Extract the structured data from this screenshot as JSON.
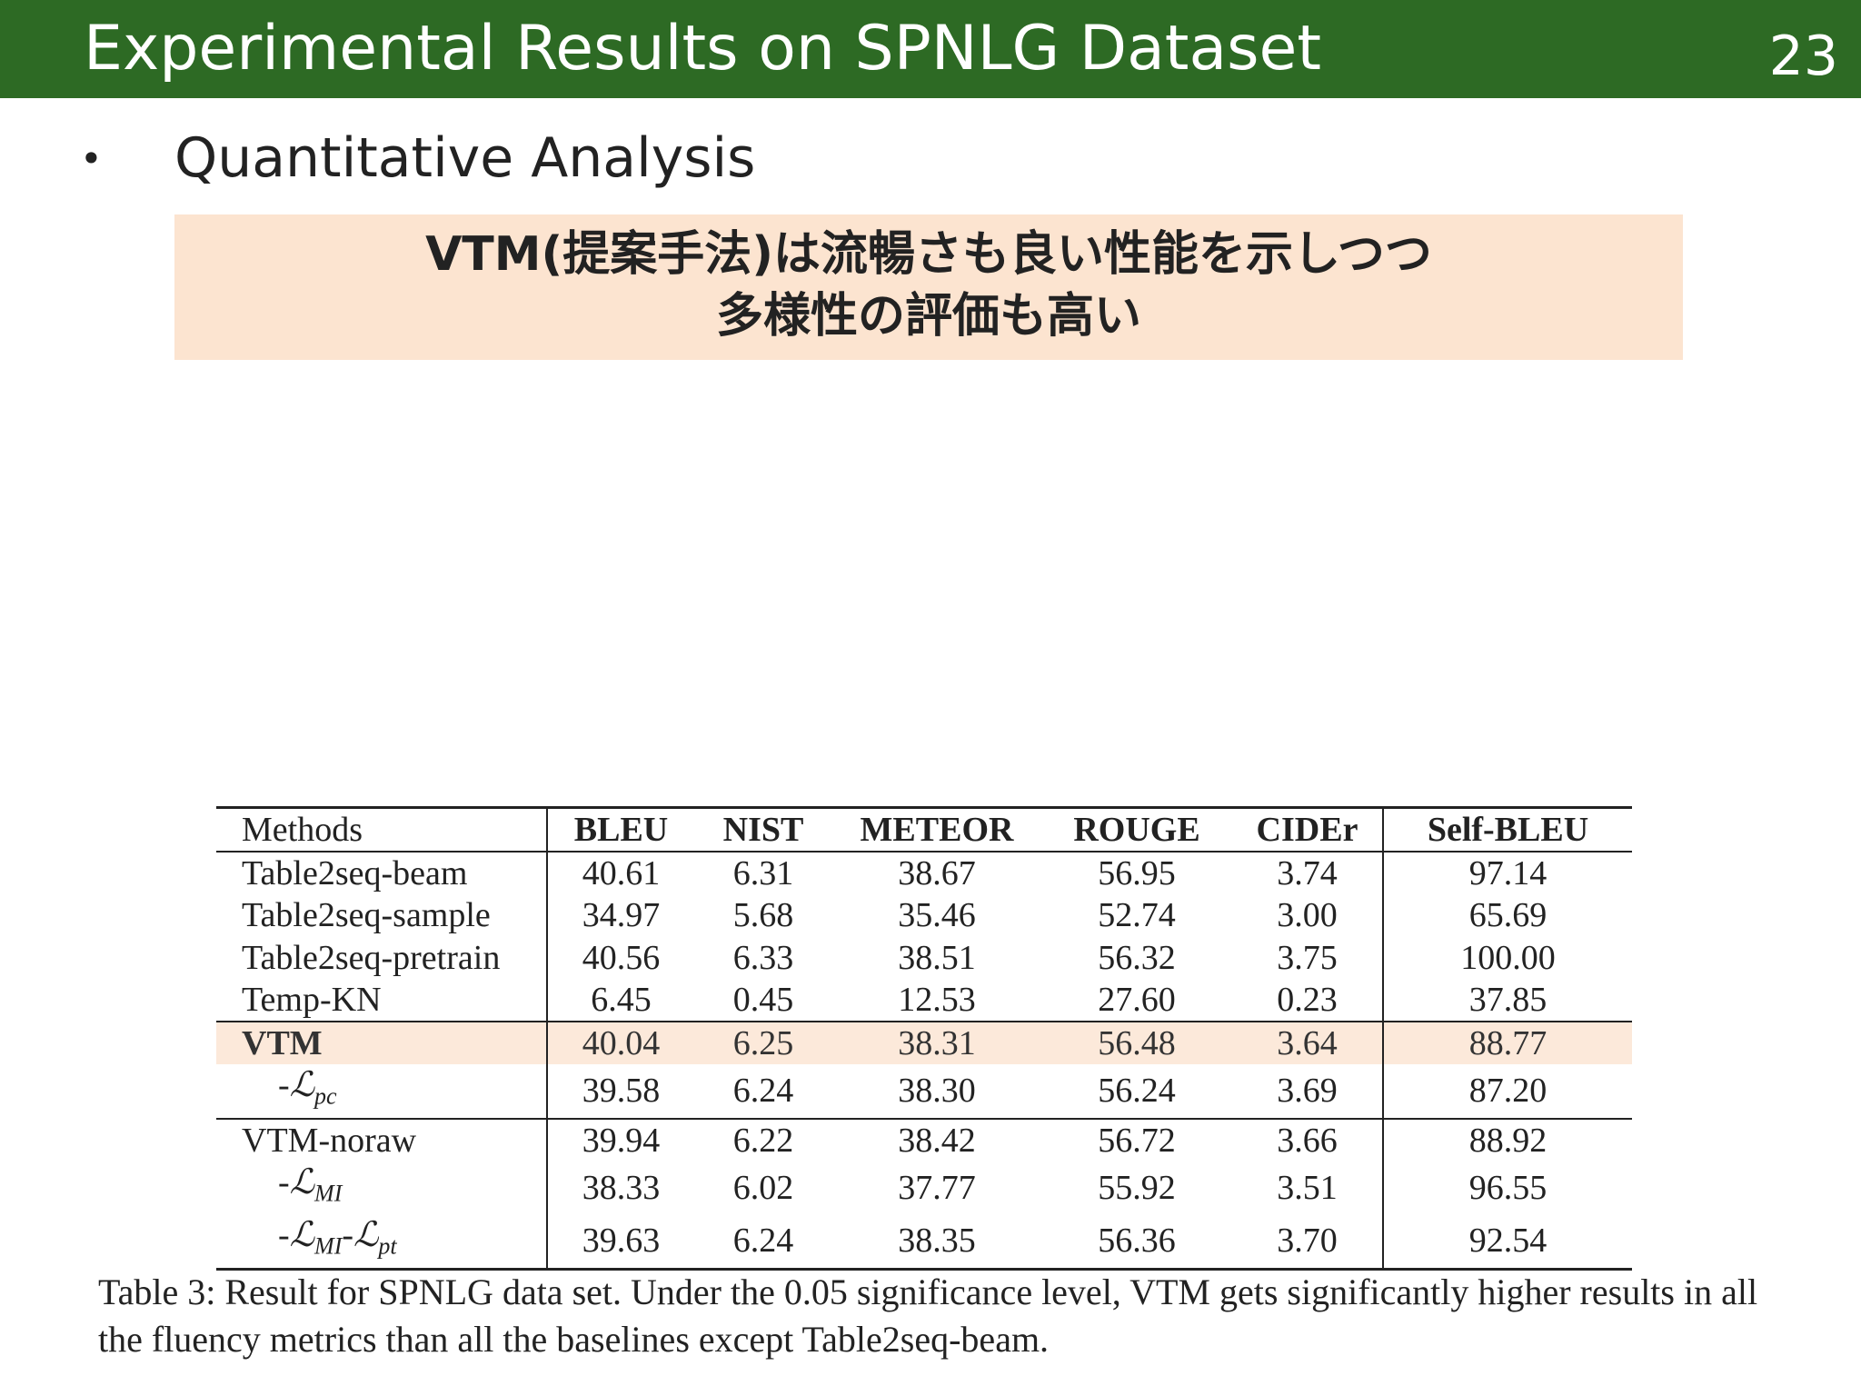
{
  "header": {
    "title": "Experimental Results on SPNLG Dataset",
    "page_number": "23"
  },
  "bullet": {
    "symbol": "•",
    "text": "Quantitative Analysis"
  },
  "callout": {
    "line1": "VTM(提案手法)は流暢さも良い性能を示しつつ",
    "line2": "多様性の評価も高い",
    "background": "#fce4d0"
  },
  "table": {
    "headers": [
      "Methods",
      "BLEU",
      "NIST",
      "METEOR",
      "ROUGE",
      "CIDEr",
      "Self-BLEU"
    ],
    "rows": [
      {
        "method": "Table2seq-beam",
        "values": [
          "40.61",
          "6.31",
          "38.67",
          "56.95",
          "3.74",
          "97.14"
        ]
      },
      {
        "method": "Table2seq-sample",
        "values": [
          "34.97",
          "5.68",
          "35.46",
          "52.74",
          "3.00",
          "65.69"
        ]
      },
      {
        "method": "Table2seq-pretrain",
        "values": [
          "40.56",
          "6.33",
          "38.51",
          "56.32",
          "3.75",
          "100.00"
        ]
      },
      {
        "method": "Temp-KN",
        "values": [
          "6.45",
          "0.45",
          "12.53",
          "27.60",
          "0.23",
          "37.85"
        ]
      },
      {
        "method": "VTM",
        "values": [
          "40.04",
          "6.25",
          "38.31",
          "56.48",
          "3.64",
          "88.77"
        ]
      },
      {
        "method": "-ℒ",
        "sub": "pc",
        "values": [
          "39.58",
          "6.24",
          "38.30",
          "56.24",
          "3.69",
          "87.20"
        ]
      },
      {
        "method": "VTM-noraw",
        "values": [
          "39.94",
          "6.22",
          "38.42",
          "56.72",
          "3.66",
          "88.92"
        ]
      },
      {
        "method": "-ℒ",
        "sub": "MI",
        "values": [
          "38.33",
          "6.02",
          "37.77",
          "55.92",
          "3.51",
          "96.55"
        ]
      },
      {
        "method": "-ℒ",
        "sub": "MI",
        "method2": "-ℒ",
        "sub2": "pt",
        "values": [
          "39.63",
          "6.24",
          "38.35",
          "56.36",
          "3.70",
          "92.54"
        ]
      }
    ],
    "highlight_color": "#fce9da"
  },
  "caption": "Table 3: Result for SPNLG data set. Under the 0.05 significance level, VTM gets significantly higher results in all the fluency metrics than all the baselines except Table2seq-beam.",
  "colors": {
    "header_bg": "#2d6a24",
    "header_text": "#ffffff"
  }
}
